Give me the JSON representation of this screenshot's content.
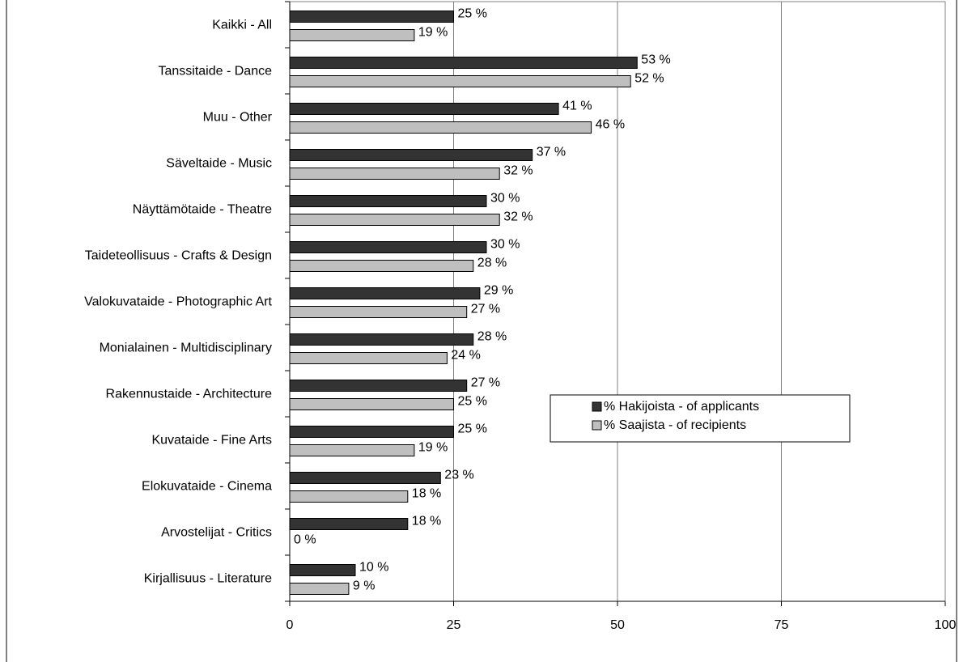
{
  "chart_data": {
    "type": "bar",
    "orientation": "horizontal",
    "categories": [
      "Kaikki - All",
      "Tanssitaide - Dance",
      "Muu - Other",
      "Säveltaide - Music",
      "Näyttämötaide - Theatre",
      "Taideteollisuus - Crafts & Design",
      "Valokuvataide - Photographic Art",
      "Monialainen - Multidisciplinary",
      "Rakennustaide - Architecture",
      "Kuvataide - Fine Arts",
      "Elokuvataide - Cinema",
      "Arvostelijat - Critics",
      "Kirjallisuus - Literature"
    ],
    "series": [
      {
        "name": "% Hakijoista - of applicants",
        "color": "#333333",
        "values": [
          25,
          53,
          41,
          37,
          30,
          30,
          29,
          28,
          27,
          25,
          23,
          18,
          10
        ],
        "value_labels": [
          "25 %",
          "53 %",
          "41 %",
          "37 %",
          "30 %",
          "30 %",
          "29 %",
          "28 %",
          "27 %",
          "25 %",
          "23 %",
          "18 %",
          "10 %"
        ]
      },
      {
        "name": "% Saajista - of recipients",
        "color": "#bfbfbf",
        "values": [
          19,
          52,
          46,
          32,
          32,
          28,
          27,
          24,
          25,
          19,
          18,
          0,
          9
        ],
        "value_labels": [
          "19 %",
          "52 %",
          "46 %",
          "32 %",
          "32 %",
          "28 %",
          "27 %",
          "24 %",
          "25 %",
          "19 %",
          "18 %",
          "0 %",
          "9 %"
        ]
      }
    ],
    "xlim": [
      0,
      100
    ],
    "xticks": [
      0,
      25,
      50,
      75,
      100
    ],
    "grid": true,
    "legend": "right"
  }
}
